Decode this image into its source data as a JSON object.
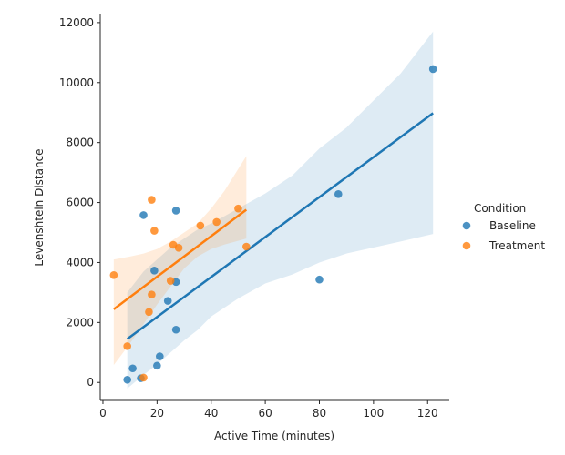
{
  "chart_data": {
    "type": "scatter",
    "title": "",
    "xlabel": "Active Time (minutes)",
    "ylabel": "Levenshtein Distance",
    "xlim": [
      -1,
      128
    ],
    "ylim": [
      -600,
      12300
    ],
    "xticks": [
      0,
      20,
      40,
      60,
      80,
      100,
      120
    ],
    "yticks": [
      0,
      2000,
      4000,
      6000,
      8000,
      10000,
      12000
    ],
    "legend": {
      "title": "Condition",
      "placement": "right"
    },
    "series": [
      {
        "name": "Baseline",
        "color": "#1f77b4",
        "points": [
          [
            122,
            10450
          ],
          [
            87,
            6280
          ],
          [
            80,
            3430
          ],
          [
            27,
            5730
          ],
          [
            15,
            5580
          ],
          [
            19,
            3730
          ],
          [
            27,
            3350
          ],
          [
            24,
            2720
          ],
          [
            27,
            1760
          ],
          [
            21,
            870
          ],
          [
            20,
            560
          ],
          [
            11,
            470
          ],
          [
            14,
            140
          ],
          [
            9,
            90
          ]
        ],
        "fit_line": {
          "x": [
            9,
            122
          ],
          "y": [
            1450,
            8980
          ]
        },
        "ci_band": {
          "x": [
            9,
            15,
            20,
            25,
            30,
            35,
            40,
            50,
            60,
            70,
            80,
            90,
            100,
            110,
            122
          ],
          "upper": [
            3000,
            3700,
            4100,
            4500,
            4800,
            5100,
            5300,
            5800,
            6300,
            6900,
            7800,
            8500,
            9400,
            10300,
            11700
          ],
          "lower": [
            -200,
            250,
            600,
            1000,
            1400,
            1750,
            2200,
            2800,
            3300,
            3600,
            4000,
            4300,
            4500,
            4700,
            4950
          ]
        }
      },
      {
        "name": "Treatment",
        "color": "#ff7f0e",
        "points": [
          [
            18,
            6090
          ],
          [
            50,
            5800
          ],
          [
            19,
            5060
          ],
          [
            42,
            5350
          ],
          [
            36,
            5230
          ],
          [
            26,
            4590
          ],
          [
            28,
            4490
          ],
          [
            53,
            4530
          ],
          [
            25,
            3390
          ],
          [
            4,
            3580
          ],
          [
            18,
            2930
          ],
          [
            17,
            2350
          ],
          [
            9,
            1210
          ],
          [
            15,
            160
          ]
        ],
        "fit_line": {
          "x": [
            4,
            53
          ],
          "y": [
            2440,
            5760
          ]
        },
        "ci_band": {
          "x": [
            4,
            10,
            15,
            20,
            25,
            30,
            35,
            40,
            45,
            53
          ],
          "upper": [
            4100,
            4200,
            4300,
            4450,
            4700,
            5000,
            5300,
            5800,
            6400,
            7550
          ],
          "lower": [
            580,
            1300,
            1950,
            2600,
            3200,
            3800,
            4200,
            4450,
            4600,
            4800
          ]
        }
      }
    ]
  }
}
